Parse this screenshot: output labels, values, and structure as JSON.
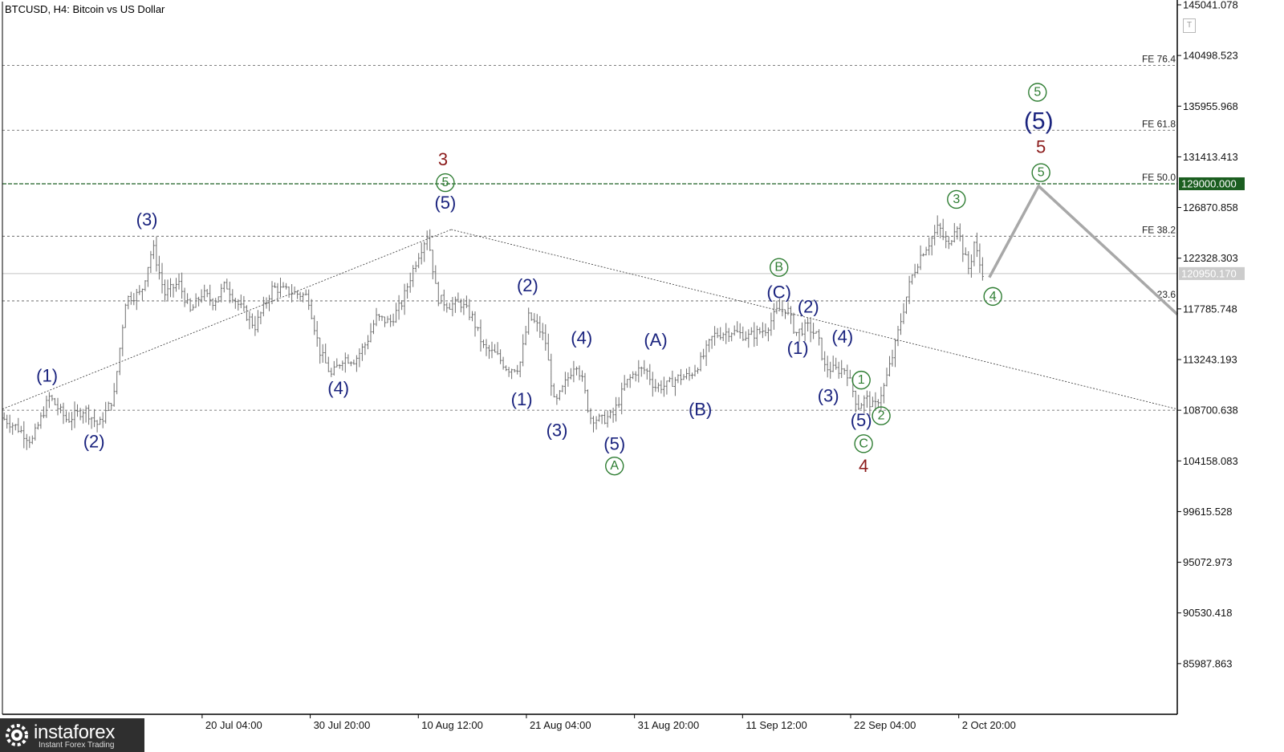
{
  "window": {
    "title": "BTCUSD, H4:  Bitcoin vs US Dollar",
    "badge": "T"
  },
  "logo": {
    "name": "instaforex",
    "sub": "Instant Forex Trading"
  },
  "colors": {
    "grid": "#555555",
    "price": "#6e6e6e",
    "green": "#2e7d32",
    "navy": "#1a237e",
    "red": "#8b1a1a",
    "forecast": "#a8a8a8",
    "tag_green": "#1b5e20",
    "tag_grey": "#cccccc"
  },
  "chart_data": {
    "type": "candlestick",
    "ylim": [
      81445.3,
      145041.078
    ],
    "y_ticks": [
      "145041.078",
      "140498.523",
      "135955.968",
      "131413.413",
      "126870.858",
      "122328.303",
      "117785.748",
      "113243.193",
      "108700.638",
      "104158.083",
      "99615.528",
      "95072.973",
      "90530.418",
      "85987.863"
    ],
    "x_ticks": [
      {
        "label": "20 Jul 04:00",
        "x": 0.17
      },
      {
        "label": "30 Jul 20:00",
        "x": 0.262
      },
      {
        "label": "10 Aug 12:00",
        "x": 0.354
      },
      {
        "label": "21 Aug 04:00",
        "x": 0.446
      },
      {
        "label": "31 Aug 20:00",
        "x": 0.538
      },
      {
        "label": "11 Sep 12:00",
        "x": 0.63
      },
      {
        "label": "22 Sep 04:00",
        "x": 0.722
      },
      {
        "label": "2 Oct 20:00",
        "x": 0.814
      }
    ],
    "price_path": [
      [
        0.0,
        108000
      ],
      [
        0.012,
        107200
      ],
      [
        0.025,
        105900
      ],
      [
        0.04,
        109900
      ],
      [
        0.055,
        107800
      ],
      [
        0.07,
        108800
      ],
      [
        0.082,
        107300
      ],
      [
        0.095,
        110000
      ],
      [
        0.105,
        118700
      ],
      [
        0.118,
        119200
      ],
      [
        0.128,
        123400
      ],
      [
        0.138,
        119100
      ],
      [
        0.15,
        120100
      ],
      [
        0.16,
        117500
      ],
      [
        0.17,
        119200
      ],
      [
        0.18,
        118400
      ],
      [
        0.19,
        120000
      ],
      [
        0.2,
        118300
      ],
      [
        0.215,
        116200
      ],
      [
        0.23,
        119700
      ],
      [
        0.245,
        119300
      ],
      [
        0.26,
        118900
      ],
      [
        0.27,
        114000
      ],
      [
        0.28,
        111800
      ],
      [
        0.29,
        113400
      ],
      [
        0.3,
        113200
      ],
      [
        0.31,
        114800
      ],
      [
        0.318,
        117000
      ],
      [
        0.33,
        116600
      ],
      [
        0.34,
        118300
      ],
      [
        0.348,
        120900
      ],
      [
        0.355,
        122900
      ],
      [
        0.362,
        124500
      ],
      [
        0.37,
        118800
      ],
      [
        0.38,
        118100
      ],
      [
        0.39,
        118300
      ],
      [
        0.4,
        117000
      ],
      [
        0.41,
        114200
      ],
      [
        0.42,
        113700
      ],
      [
        0.43,
        112400
      ],
      [
        0.44,
        112600
      ],
      [
        0.448,
        117100
      ],
      [
        0.455,
        116300
      ],
      [
        0.462,
        115000
      ],
      [
        0.47,
        109100
      ],
      [
        0.48,
        111300
      ],
      [
        0.488,
        113100
      ],
      [
        0.494,
        111200
      ],
      [
        0.5,
        108100
      ],
      [
        0.51,
        107800
      ],
      [
        0.52,
        108300
      ],
      [
        0.53,
        111000
      ],
      [
        0.54,
        112300
      ],
      [
        0.548,
        112300
      ],
      [
        0.555,
        110800
      ],
      [
        0.565,
        110900
      ],
      [
        0.575,
        111600
      ],
      [
        0.585,
        111800
      ],
      [
        0.595,
        113200
      ],
      [
        0.605,
        115400
      ],
      [
        0.62,
        115800
      ],
      [
        0.635,
        115300
      ],
      [
        0.65,
        116000
      ],
      [
        0.66,
        117700
      ],
      [
        0.668,
        117800
      ],
      [
        0.675,
        115600
      ],
      [
        0.685,
        116200
      ],
      [
        0.694,
        115300
      ],
      [
        0.7,
        112500
      ],
      [
        0.71,
        112300
      ],
      [
        0.718,
        112400
      ],
      [
        0.724,
        110400
      ],
      [
        0.728,
        109000
      ],
      [
        0.735,
        109800
      ],
      [
        0.742,
        108900
      ],
      [
        0.75,
        110700
      ],
      [
        0.758,
        113700
      ],
      [
        0.765,
        116900
      ],
      [
        0.773,
        120400
      ],
      [
        0.782,
        122700
      ],
      [
        0.79,
        123900
      ],
      [
        0.797,
        125200
      ],
      [
        0.805,
        123200
      ],
      [
        0.812,
        125700
      ],
      [
        0.817,
        123200
      ],
      [
        0.823,
        121200
      ],
      [
        0.827,
        123800
      ],
      [
        0.832,
        121700
      ],
      [
        0.835,
        120950
      ]
    ],
    "forecast_path": [
      [
        0.84,
        120600
      ],
      [
        0.882,
        128800
      ],
      [
        1.0,
        117300
      ]
    ],
    "current_price": "120950.170",
    "target_price": "129000.000",
    "fib_levels": [
      {
        "label": "FE 76.4",
        "value": 139600
      },
      {
        "label": "FE 61.8",
        "value": 133800
      },
      {
        "label": "FE 50.0",
        "value": 129000,
        "target": true
      },
      {
        "label": "FE 38.2",
        "value": 124300
      },
      {
        "label": "23.6",
        "value": 118500
      }
    ],
    "support_value": 108700,
    "trendlines": [
      {
        "from": [
          0.0,
          108800
        ],
        "to": [
          0.382,
          124900
        ]
      },
      {
        "from": [
          0.382,
          124900
        ],
        "to": [
          1.0,
          108800
        ]
      }
    ],
    "wave_labels": [
      {
        "text": "(1)",
        "x": 0.038,
        "y": 111800,
        "color": "navy",
        "circled": false
      },
      {
        "text": "(2)",
        "x": 0.078,
        "y": 105900,
        "color": "navy",
        "circled": false
      },
      {
        "text": "(3)",
        "x": 0.123,
        "y": 125800,
        "color": "navy",
        "circled": false
      },
      {
        "text": "(4)",
        "x": 0.286,
        "y": 110700,
        "color": "navy",
        "circled": false
      },
      {
        "text": "3",
        "x": 0.375,
        "y": 131200,
        "color": "red",
        "circled": false
      },
      {
        "text": "5",
        "x": 0.377,
        "y": 129100,
        "color": "green",
        "circled": true
      },
      {
        "text": "(5)",
        "x": 0.377,
        "y": 127300,
        "color": "navy",
        "circled": false
      },
      {
        "text": "(2)",
        "x": 0.447,
        "y": 119900,
        "color": "navy",
        "circled": false
      },
      {
        "text": "(1)",
        "x": 0.442,
        "y": 109700,
        "color": "navy",
        "circled": false
      },
      {
        "text": "(4)",
        "x": 0.493,
        "y": 115200,
        "color": "navy",
        "circled": false
      },
      {
        "text": "(3)",
        "x": 0.472,
        "y": 106900,
        "color": "navy",
        "circled": false
      },
      {
        "text": "(A)",
        "x": 0.556,
        "y": 115000,
        "color": "navy",
        "circled": false
      },
      {
        "text": "(5)",
        "x": 0.521,
        "y": 105700,
        "color": "navy",
        "circled": false
      },
      {
        "text": "A",
        "x": 0.521,
        "y": 103700,
        "color": "green",
        "circled": true
      },
      {
        "text": "(B)",
        "x": 0.594,
        "y": 108800,
        "color": "navy",
        "circled": false
      },
      {
        "text": "B",
        "x": 0.661,
        "y": 121500,
        "color": "green",
        "circled": true
      },
      {
        "text": "(C)",
        "x": 0.661,
        "y": 119300,
        "color": "navy",
        "circled": false
      },
      {
        "text": "(2)",
        "x": 0.686,
        "y": 118000,
        "color": "navy",
        "circled": false
      },
      {
        "text": "(1)",
        "x": 0.677,
        "y": 114300,
        "color": "navy",
        "circled": false
      },
      {
        "text": "(4)",
        "x": 0.715,
        "y": 115300,
        "color": "navy",
        "circled": false
      },
      {
        "text": "(3)",
        "x": 0.703,
        "y": 110000,
        "color": "navy",
        "circled": false
      },
      {
        "text": "1",
        "x": 0.731,
        "y": 111400,
        "color": "green",
        "circled": true
      },
      {
        "text": "(5)",
        "x": 0.731,
        "y": 107800,
        "color": "navy",
        "circled": false
      },
      {
        "text": "2",
        "x": 0.748,
        "y": 108200,
        "color": "green",
        "circled": true
      },
      {
        "text": "C",
        "x": 0.733,
        "y": 105700,
        "color": "green",
        "circled": true
      },
      {
        "text": "4",
        "x": 0.733,
        "y": 103700,
        "color": "red",
        "circled": false
      },
      {
        "text": "3",
        "x": 0.812,
        "y": 127600,
        "color": "green",
        "circled": true
      },
      {
        "text": "4",
        "x": 0.843,
        "y": 118900,
        "color": "green",
        "circled": true
      },
      {
        "text": "5",
        "x": 0.881,
        "y": 137200,
        "color": "green",
        "circled": true
      },
      {
        "text": "(5)",
        "x": 0.882,
        "y": 134600,
        "color": "navy",
        "circled": false,
        "large": true
      },
      {
        "text": "5",
        "x": 0.884,
        "y": 132300,
        "color": "red",
        "circled": false
      },
      {
        "text": "5",
        "x": 0.884,
        "y": 130000,
        "color": "green",
        "circled": true
      }
    ]
  }
}
